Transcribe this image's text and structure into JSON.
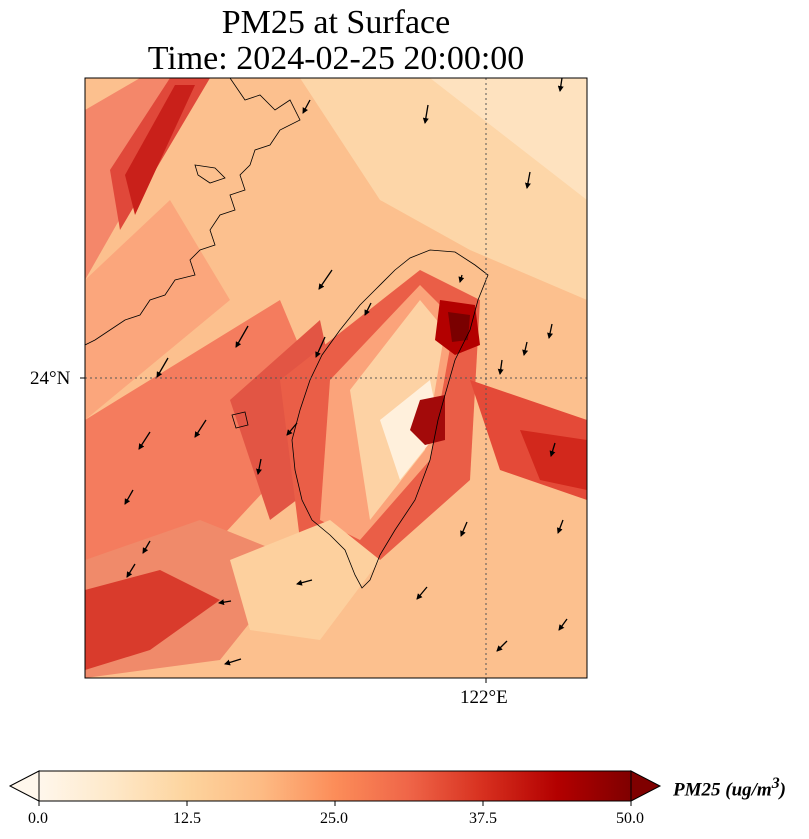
{
  "title_line1": "PM25 at Surface",
  "title_line2": "Time: 2024-02-25 20:00:00",
  "map": {
    "lat_label": "24°N",
    "lon_label": "122°E",
    "gridline_style": "dotted",
    "coastline_region": "Taiwan and southeast China coast",
    "high_concentration_colors": [
      "#7a0000",
      "#b30000",
      "#d7301f"
    ],
    "low_concentration_colors": [
      "#fff7ec",
      "#fdd49e"
    ]
  },
  "colorbar": {
    "label": "PM25 (ug/m",
    "label_sup": "3",
    "label_close": ")",
    "ticks": [
      "0.0",
      "12.5",
      "25.0",
      "37.5",
      "50.0"
    ],
    "min": 0,
    "max": 50,
    "extend": "both",
    "colormap": "OrRd",
    "colors": [
      "#fff7ec",
      "#fee8c8",
      "#fdd49e",
      "#fdbb84",
      "#fc8d59",
      "#ef6548",
      "#d7301f",
      "#b30000",
      "#7f0000"
    ]
  },
  "icons": {
    "wind_vectors": "wind-arrow-icon"
  }
}
